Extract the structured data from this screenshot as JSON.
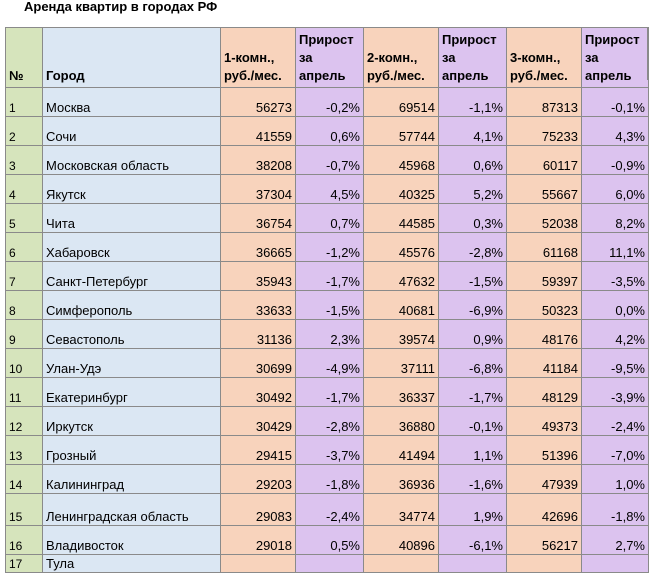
{
  "title": "Аренда квартир в городах РФ",
  "headers": {
    "num": "№",
    "city": "Город",
    "room1": "1-комн., руб./мес.",
    "growth1": "Прирост за апрель",
    "room2": "2-комн., руб./мес.",
    "growth2": "Прирост за апрель",
    "room3": "3-комн., руб./мес.",
    "growth3": "Прирост за апрель"
  },
  "rows": [
    {
      "num": "1",
      "city": "Москва",
      "r1": "56273",
      "g1": "-0,2%",
      "r2": "69514",
      "g2": "-1,1%",
      "r3": "87313",
      "g3": "-0,1%"
    },
    {
      "num": "2",
      "city": "Сочи",
      "r1": "41559",
      "g1": "0,6%",
      "r2": "57744",
      "g2": "4,1%",
      "r3": "75233",
      "g3": "4,3%"
    },
    {
      "num": "3",
      "city": "Московская область",
      "r1": "38208",
      "g1": "-0,7%",
      "r2": "45968",
      "g2": "0,6%",
      "r3": "60117",
      "g3": "-0,9%"
    },
    {
      "num": "4",
      "city": "Якутск",
      "r1": "37304",
      "g1": "4,5%",
      "r2": "40325",
      "g2": "5,2%",
      "r3": "55667",
      "g3": "6,0%"
    },
    {
      "num": "5",
      "city": "Чита",
      "r1": "36754",
      "g1": "0,7%",
      "r2": "44585",
      "g2": "0,3%",
      "r3": "52038",
      "g3": "8,2%"
    },
    {
      "num": "6",
      "city": "Хабаровск",
      "r1": "36665",
      "g1": "-1,2%",
      "r2": "45576",
      "g2": "-2,8%",
      "r3": "61168",
      "g3": "11,1%"
    },
    {
      "num": "7",
      "city": "Санкт-Петербург",
      "r1": "35943",
      "g1": "-1,7%",
      "r2": "47632",
      "g2": "-1,5%",
      "r3": "59397",
      "g3": "-3,5%"
    },
    {
      "num": "8",
      "city": "Симферополь",
      "r1": "33633",
      "g1": "-1,5%",
      "r2": "40681",
      "g2": "-6,9%",
      "r3": "50323",
      "g3": "0,0%"
    },
    {
      "num": "9",
      "city": "Севастополь",
      "r1": "31136",
      "g1": "2,3%",
      "r2": "39574",
      "g2": "0,9%",
      "r3": "48176",
      "g3": "4,2%"
    },
    {
      "num": "10",
      "city": "Улан-Удэ",
      "r1": "30699",
      "g1": "-4,9%",
      "r2": "37111",
      "g2": "-6,8%",
      "r3": "41184",
      "g3": "-9,5%"
    },
    {
      "num": "11",
      "city": "Екатеринбург",
      "r1": "30492",
      "g1": "-1,7%",
      "r2": "36337",
      "g2": "-1,7%",
      "r3": "48129",
      "g3": "-3,9%"
    },
    {
      "num": "12",
      "city": "Иркутск",
      "r1": "30429",
      "g1": "-2,8%",
      "r2": "36880",
      "g2": "-0,1%",
      "r3": "49373",
      "g3": "-2,4%"
    },
    {
      "num": "13",
      "city": "Грозный",
      "r1": "29415",
      "g1": "-3,7%",
      "r2": "41494",
      "g2": "1,1%",
      "r3": "51396",
      "g3": "-7,0%"
    },
    {
      "num": "14",
      "city": "Калининград",
      "r1": "29203",
      "g1": "-1,8%",
      "r2": "36936",
      "g2": "-1,6%",
      "r3": "47939",
      "g3": "1,0%"
    },
    {
      "num": "15",
      "city": "Ленинградская область",
      "r1": "29083",
      "g1": "-2,4%",
      "r2": "34774",
      "g2": "1,9%",
      "r3": "42696",
      "g3": "-1,8%"
    },
    {
      "num": "16",
      "city": "Владивосток",
      "r1": "29018",
      "g1": "0,5%",
      "r2": "40896",
      "g2": "-6,1%",
      "r3": "56217",
      "g3": "2,7%"
    },
    {
      "num": "17",
      "city": "Тула",
      "r1": "",
      "g1": "",
      "r2": "",
      "g2": "",
      "r3": "",
      "g3": ""
    }
  ]
}
